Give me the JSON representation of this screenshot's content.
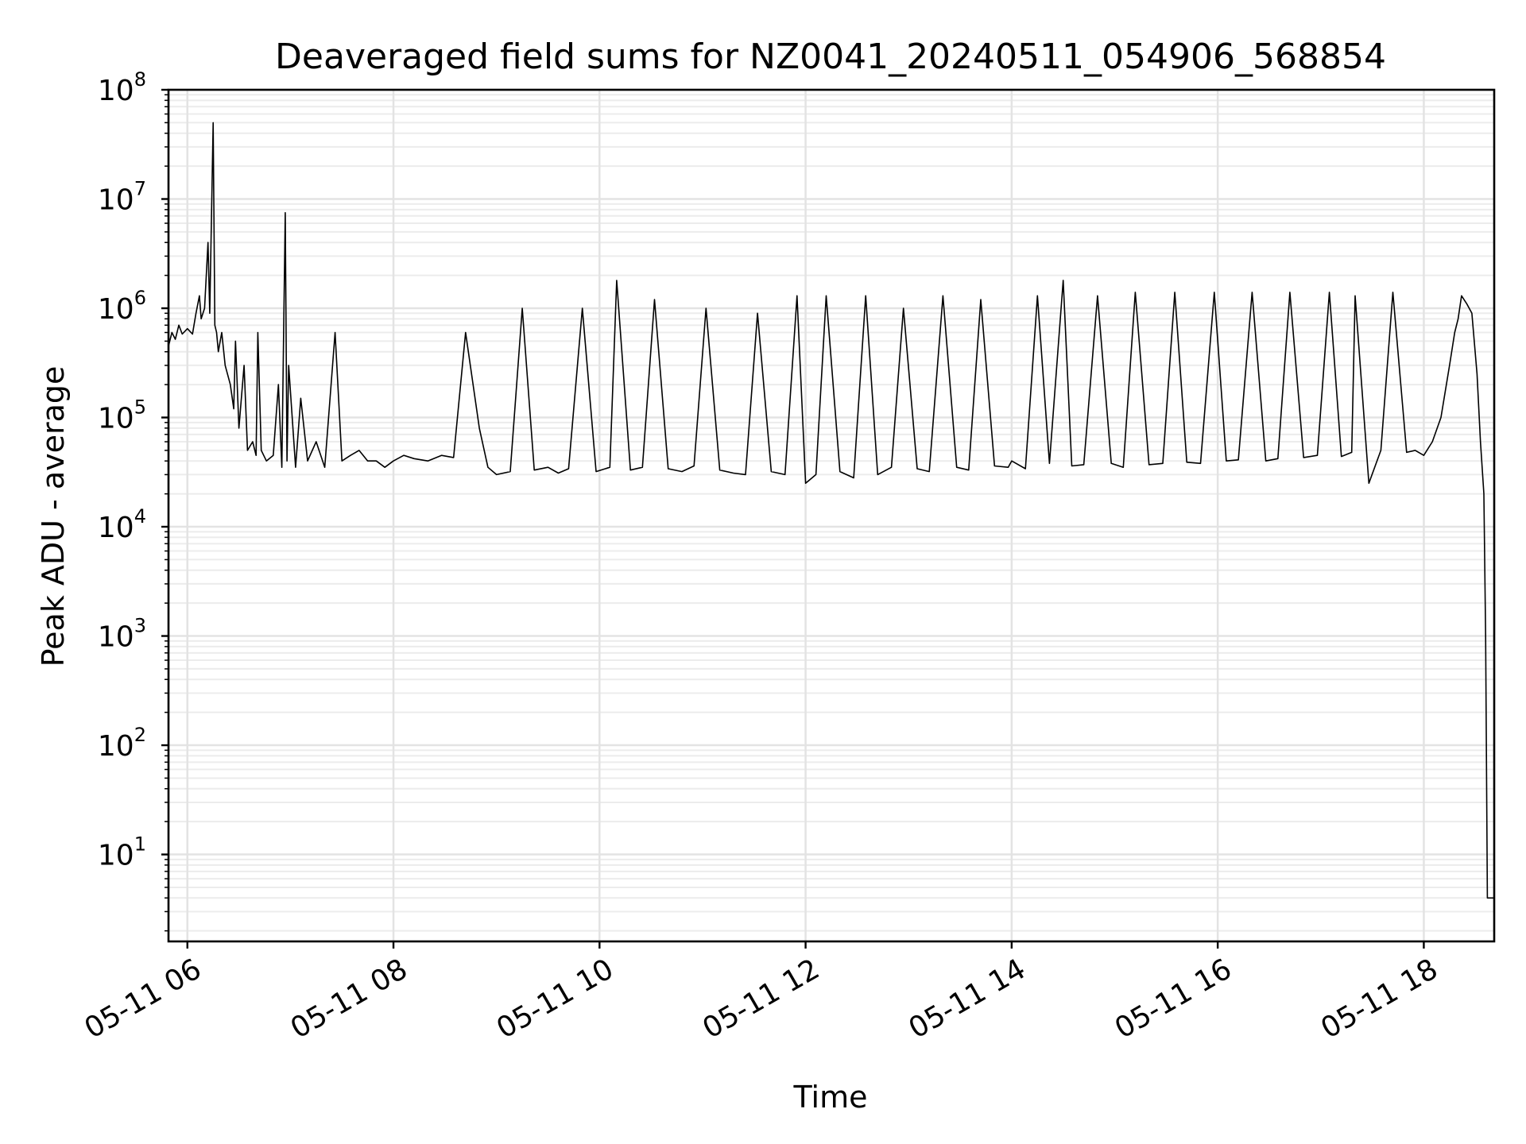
{
  "chart_data": {
    "type": "line",
    "title": "Deaveraged field sums for NZ0041_20240511_054906_568854",
    "xlabel": "Time",
    "ylabel": "Peak ADU - average",
    "yscale": "log",
    "xlim": [
      "2024-05-11T05:49:00",
      "2024-05-11T18:41:00"
    ],
    "ylim": [
      1.6,
      100000000
    ],
    "grid": true,
    "grid_minor": true,
    "x_ticks": [
      {
        "value": "2024-05-11T06:00:00",
        "label": "05-11 06"
      },
      {
        "value": "2024-05-11T08:00:00",
        "label": "05-11 08"
      },
      {
        "value": "2024-05-11T10:00:00",
        "label": "05-11 10"
      },
      {
        "value": "2024-05-11T12:00:00",
        "label": "05-11 12"
      },
      {
        "value": "2024-05-11T14:00:00",
        "label": "05-11 14"
      },
      {
        "value": "2024-05-11T16:00:00",
        "label": "05-11 16"
      },
      {
        "value": "2024-05-11T18:00:00",
        "label": "05-11 18"
      }
    ],
    "y_ticks": [
      {
        "value": 10,
        "base": "10",
        "exp": "1"
      },
      {
        "value": 100,
        "base": "10",
        "exp": "2"
      },
      {
        "value": 1000,
        "base": "10",
        "exp": "3"
      },
      {
        "value": 10000,
        "base": "10",
        "exp": "4"
      },
      {
        "value": 100000,
        "base": "10",
        "exp": "5"
      },
      {
        "value": 1000000,
        "base": "10",
        "exp": "6"
      },
      {
        "value": 10000000,
        "base": "10",
        "exp": "7"
      },
      {
        "value": 100000000,
        "base": "10",
        "exp": "8"
      }
    ],
    "series_color": "#000000",
    "series": [
      {
        "x": [
          "2024-05-11T05:49:00",
          "2024-05-11T05:51:00",
          "2024-05-11T05:53:00",
          "2024-05-11T05:55:00",
          "2024-05-11T05:57:00",
          "2024-05-11T06:00:00",
          "2024-05-11T06:03:00",
          "2024-05-11T06:05:00",
          "2024-05-11T06:07:00",
          "2024-05-11T06:08:00",
          "2024-05-11T06:10:00",
          "2024-05-11T06:12:00",
          "2024-05-11T06:13:00",
          "2024-05-11T06:15:00",
          "2024-05-11T06:16:00",
          "2024-05-11T06:17:00",
          "2024-05-11T06:18:00",
          "2024-05-11T06:20:00",
          "2024-05-11T06:22:00",
          "2024-05-11T06:25:00",
          "2024-05-11T06:27:00",
          "2024-05-11T06:28:00",
          "2024-05-11T06:30:00",
          "2024-05-11T06:33:00",
          "2024-05-11T06:35:00",
          "2024-05-11T06:38:00",
          "2024-05-11T06:40:00",
          "2024-05-11T06:41:00",
          "2024-05-11T06:43:00",
          "2024-05-11T06:46:00",
          "2024-05-11T06:50:00",
          "2024-05-11T06:53:00",
          "2024-05-11T06:55:00",
          "2024-05-11T06:57:00",
          "2024-05-11T06:58:00",
          "2024-05-11T06:59:00",
          "2024-05-11T07:03:00",
          "2024-05-11T07:06:00",
          "2024-05-11T07:10:00",
          "2024-05-11T07:15:00",
          "2024-05-11T07:20:00",
          "2024-05-11T07:26:00",
          "2024-05-11T07:30:00",
          "2024-05-11T07:35:00",
          "2024-05-11T07:40:00",
          "2024-05-11T07:45:00",
          "2024-05-11T07:50:00",
          "2024-05-11T07:55:00",
          "2024-05-11T08:00:00",
          "2024-05-11T08:06:00",
          "2024-05-11T08:12:00",
          "2024-05-11T08:20:00",
          "2024-05-11T08:28:00",
          "2024-05-11T08:35:00",
          "2024-05-11T08:42:00",
          "2024-05-11T08:50:00",
          "2024-05-11T08:55:00",
          "2024-05-11T09:00:00",
          "2024-05-11T09:08:00",
          "2024-05-11T09:15:00",
          "2024-05-11T09:22:00",
          "2024-05-11T09:30:00",
          "2024-05-11T09:36:00",
          "2024-05-11T09:42:00",
          "2024-05-11T09:50:00",
          "2024-05-11T09:58:00",
          "2024-05-11T10:06:00",
          "2024-05-11T10:10:00",
          "2024-05-11T10:18:00",
          "2024-05-11T10:25:00",
          "2024-05-11T10:32:00",
          "2024-05-11T10:40:00",
          "2024-05-11T10:48:00",
          "2024-05-11T10:55:00",
          "2024-05-11T11:02:00",
          "2024-05-11T11:10:00",
          "2024-05-11T11:18:00",
          "2024-05-11T11:25:00",
          "2024-05-11T11:32:00",
          "2024-05-11T11:40:00",
          "2024-05-11T11:48:00",
          "2024-05-11T11:55:00",
          "2024-05-11T12:00:00",
          "2024-05-11T12:06:00",
          "2024-05-11T12:12:00",
          "2024-05-11T12:20:00",
          "2024-05-11T12:28:00",
          "2024-05-11T12:35:00",
          "2024-05-11T12:42:00",
          "2024-05-11T12:50:00",
          "2024-05-11T12:57:00",
          "2024-05-11T13:05:00",
          "2024-05-11T13:12:00",
          "2024-05-11T13:20:00",
          "2024-05-11T13:28:00",
          "2024-05-11T13:35:00",
          "2024-05-11T13:42:00",
          "2024-05-11T13:50:00",
          "2024-05-11T13:58:00",
          "2024-05-11T14:00:00",
          "2024-05-11T14:08:00",
          "2024-05-11T14:15:00",
          "2024-05-11T14:22:00",
          "2024-05-11T14:30:00",
          "2024-05-11T14:35:00",
          "2024-05-11T14:42:00",
          "2024-05-11T14:50:00",
          "2024-05-11T14:58:00",
          "2024-05-11T15:05:00",
          "2024-05-11T15:12:00",
          "2024-05-11T15:20:00",
          "2024-05-11T15:28:00",
          "2024-05-11T15:35:00",
          "2024-05-11T15:42:00",
          "2024-05-11T15:50:00",
          "2024-05-11T15:58:00",
          "2024-05-11T16:05:00",
          "2024-05-11T16:12:00",
          "2024-05-11T16:20:00",
          "2024-05-11T16:28:00",
          "2024-05-11T16:35:00",
          "2024-05-11T16:42:00",
          "2024-05-11T16:50:00",
          "2024-05-11T16:58:00",
          "2024-05-11T17:05:00",
          "2024-05-11T17:12:00",
          "2024-05-11T17:18:00",
          "2024-05-11T17:20:00",
          "2024-05-11T17:28:00",
          "2024-05-11T17:35:00",
          "2024-05-11T17:42:00",
          "2024-05-11T17:50:00",
          "2024-05-11T17:55:00",
          "2024-05-11T18:00:00",
          "2024-05-11T18:05:00",
          "2024-05-11T18:10:00",
          "2024-05-11T18:15:00",
          "2024-05-11T18:18:00",
          "2024-05-11T18:20:00",
          "2024-05-11T18:22:00",
          "2024-05-11T18:25:00",
          "2024-05-11T18:28:00",
          "2024-05-11T18:31:00",
          "2024-05-11T18:33:00",
          "2024-05-11T18:35:00",
          "2024-05-11T18:36:00",
          "2024-05-11T18:37:00",
          "2024-05-11T18:41:00"
        ],
        "y": [
          450000,
          600000,
          520000,
          700000,
          580000,
          650000,
          580000,
          900000,
          1300000,
          800000,
          1000000,
          4000000,
          900000,
          50000000,
          700000,
          600000,
          400000,
          600000,
          300000,
          200000,
          120000,
          500000,
          80000,
          300000,
          50000,
          60000,
          45000,
          600000,
          50000,
          40000,
          45000,
          200000,
          35000,
          7500000,
          40000,
          300000,
          35000,
          150000,
          40000,
          60000,
          35000,
          600000,
          40000,
          45000,
          50000,
          40000,
          40000,
          35000,
          40000,
          45000,
          42000,
          40000,
          45000,
          43000,
          600000,
          80000,
          35000,
          30000,
          32000,
          1000000,
          33000,
          35000,
          31000,
          34000,
          1000000,
          32000,
          35000,
          1800000,
          33000,
          35000,
          1200000,
          34000,
          32000,
          36000,
          1000000,
          33000,
          31000,
          30000,
          900000,
          32000,
          30000,
          1300000,
          25000,
          30000,
          1300000,
          32000,
          28000,
          1300000,
          30000,
          35000,
          1000000,
          34000,
          32000,
          1300000,
          35000,
          33000,
          1200000,
          36000,
          35000,
          40000,
          34000,
          1300000,
          38000,
          1800000,
          36000,
          37000,
          1300000,
          38000,
          35000,
          1400000,
          37000,
          38000,
          1400000,
          39000,
          38000,
          1400000,
          40000,
          41000,
          1400000,
          40000,
          42000,
          1400000,
          43000,
          45000,
          1400000,
          44000,
          48000,
          1300000,
          25000,
          50000,
          1400000,
          48000,
          50000,
          45000,
          60000,
          100000,
          300000,
          600000,
          800000,
          1300000,
          1100000,
          900000,
          250000,
          60000,
          20000,
          1000,
          4,
          4
        ]
      }
    ]
  }
}
